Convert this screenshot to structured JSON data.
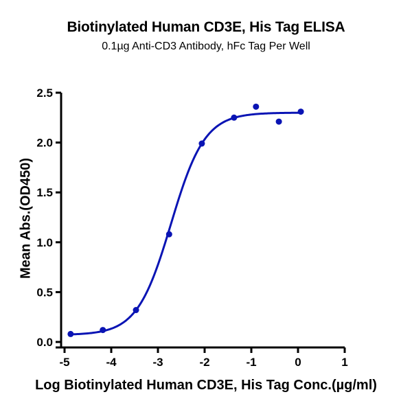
{
  "chart_data": {
    "type": "scatter",
    "title": "Biotinylated Human CD3E, His Tag ELISA",
    "subtitle": "0.1µg Anti-CD3 Antibody, hFc Tag Per Well",
    "xlabel": "Log Biotinylated Human CD3E, His Tag Conc.(µg/ml)",
    "ylabel": "Mean Abs.(OD450)",
    "xlim": [
      -5,
      1
    ],
    "ylim": [
      0.0,
      2.5
    ],
    "xticks": [
      "-5",
      "-4",
      "-3",
      "-2",
      "-1",
      "0",
      "1"
    ],
    "yticks": [
      "0.0",
      "0.5",
      "1.0",
      "1.5",
      "2.0",
      "2.5"
    ],
    "grid": false,
    "legend": null,
    "series": [
      {
        "name": "Mean Abs.(OD450)",
        "color": "#0a14b4",
        "x": [
          -4.87,
          -4.18,
          -3.47,
          -2.76,
          -2.06,
          -1.37,
          -0.9,
          -0.41,
          0.06
        ],
        "y": [
          0.08,
          0.12,
          0.32,
          1.08,
          1.99,
          2.25,
          2.36,
          2.21,
          2.31
        ]
      }
    ],
    "fit": {
      "type": "4PL",
      "bottom": 0.07,
      "top": 2.3,
      "logEC50": -2.72,
      "hill": 1.2,
      "x_range": [
        -4.87,
        0.06
      ],
      "color": "#0a14b4"
    }
  }
}
